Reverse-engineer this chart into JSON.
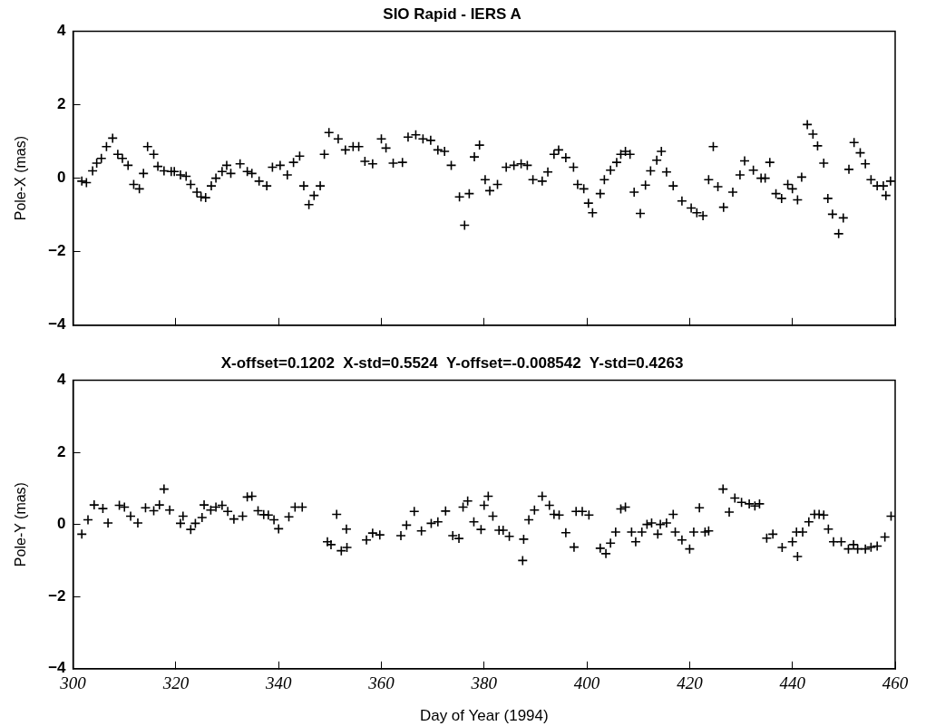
{
  "chart_data": [
    {
      "type": "scatter",
      "title": "SIO Rapid - IERS A",
      "ylabel": "Pole-X (mas)",
      "color": "#000000",
      "marker": "cross",
      "grid": false,
      "tick_labels": "y",
      "xlim": [
        300,
        460
      ],
      "xticks": [
        300,
        320,
        340,
        360,
        380,
        400,
        420,
        440,
        460
      ],
      "ylim": [
        -4,
        4
      ],
      "yticks": [
        -4,
        -2,
        0,
        2,
        4
      ],
      "x": [
        301.7,
        302.6,
        303.8,
        304.6,
        305.5,
        306.5,
        307.7,
        308.7,
        309.6,
        310.7,
        311.8,
        312.9,
        313.7,
        314.5,
        315.7,
        316.5,
        317.7,
        319.1,
        319.7,
        320.9,
        322.0,
        322.9,
        324.1,
        324.9,
        325.8,
        326.9,
        327.8,
        329.0,
        329.9,
        330.7,
        332.5,
        333.9,
        334.8,
        336.2,
        337.7,
        338.8,
        340.3,
        341.7,
        342.9,
        344.1,
        344.9,
        345.9,
        346.9,
        348.1,
        348.9,
        349.8,
        351.6,
        353.0,
        354.5,
        355.6,
        356.8,
        358.3,
        360.0,
        360.9,
        362.3,
        364.1,
        365.2,
        366.7,
        368.1,
        369.6,
        371.0,
        372.3,
        373.6,
        375.2,
        376.2,
        377.1,
        378.1,
        379.1,
        380.2,
        381.1,
        382.6,
        384.3,
        385.8,
        387.2,
        388.4,
        389.5,
        391.3,
        392.4,
        393.6,
        394.5,
        395.9,
        397.4,
        398.2,
        399.4,
        400.3,
        401.1,
        402.6,
        403.4,
        404.6,
        405.8,
        406.6,
        407.5,
        408.4,
        409.2,
        410.4,
        411.4,
        412.4,
        413.6,
        414.5,
        415.5,
        416.8,
        418.5,
        420.3,
        421.4,
        422.6,
        423.7,
        424.6,
        425.5,
        426.6,
        428.4,
        429.8,
        430.7,
        432.4,
        433.9,
        434.7,
        435.6,
        436.8,
        437.9,
        439.1,
        440.0,
        441.0,
        441.8,
        442.9,
        444.0,
        444.9,
        446.1,
        446.9,
        447.8,
        449.0,
        449.9,
        451.0,
        452.0,
        453.2,
        454.2,
        455.3,
        456.5,
        457.7,
        458.2,
        459.1
      ],
      "values": [
        -0.08,
        -0.12,
        0.2,
        0.41,
        0.54,
        0.86,
        1.09,
        0.65,
        0.54,
        0.35,
        -0.17,
        -0.29,
        0.13,
        0.86,
        0.65,
        0.32,
        0.2,
        0.18,
        0.18,
        0.09,
        0.05,
        -0.17,
        -0.38,
        -0.51,
        -0.53,
        -0.21,
        0.0,
        0.18,
        0.35,
        0.13,
        0.39,
        0.18,
        0.13,
        -0.08,
        -0.21,
        0.3,
        0.35,
        0.09,
        0.43,
        0.6,
        -0.21,
        -0.72,
        -0.47,
        -0.21,
        0.65,
        1.24,
        1.07,
        0.77,
        0.86,
        0.86,
        0.46,
        0.39,
        1.07,
        0.82,
        0.41,
        0.43,
        1.12,
        1.18,
        1.07,
        1.03,
        0.77,
        0.73,
        0.35,
        -0.51,
        -1.28,
        -0.42,
        0.58,
        0.9,
        -0.04,
        -0.34,
        -0.17,
        0.3,
        0.35,
        0.39,
        0.35,
        -0.04,
        -0.08,
        0.17,
        0.65,
        0.77,
        0.56,
        0.3,
        -0.17,
        -0.29,
        -0.68,
        -0.94,
        -0.42,
        -0.04,
        0.22,
        0.43,
        0.65,
        0.73,
        0.65,
        -0.38,
        -0.96,
        -0.19,
        0.2,
        0.49,
        0.73,
        0.17,
        -0.21,
        -0.62,
        -0.81,
        -0.94,
        -1.02,
        -0.04,
        0.86,
        -0.23,
        -0.79,
        -0.38,
        0.09,
        0.47,
        0.22,
        0.0,
        0.0,
        0.43,
        -0.42,
        -0.55,
        -0.17,
        -0.29,
        -0.59,
        0.03,
        1.46,
        1.2,
        0.88,
        0.41,
        -0.55,
        -0.98,
        -1.51,
        -1.08,
        0.24,
        0.97,
        0.69,
        0.39,
        -0.04,
        -0.21,
        -0.21,
        -0.47,
        -0.08
      ]
    },
    {
      "type": "scatter",
      "title": "X-offset=0.1202  X-std=0.5524  Y-offset=-0.008542  Y-std=0.4263",
      "ylabel": "Pole-Y (mas)",
      "xlabel": "Day of Year (1994)",
      "color": "#000000",
      "marker": "cross",
      "grid": false,
      "xlim": [
        300,
        460
      ],
      "xticks": [
        300,
        320,
        340,
        360,
        380,
        400,
        420,
        440,
        460
      ],
      "ylim": [
        -4,
        4
      ],
      "yticks": [
        -4,
        -2,
        0,
        2,
        4
      ],
      "x": [
        301.7,
        302.9,
        304.1,
        305.8,
        306.8,
        309.0,
        310.0,
        311.2,
        312.6,
        314.1,
        315.7,
        316.8,
        317.7,
        318.8,
        320.9,
        321.4,
        322.9,
        323.8,
        325.1,
        325.5,
        326.8,
        327.8,
        329.0,
        330.1,
        331.3,
        333.0,
        333.9,
        334.8,
        336.0,
        337.1,
        338.0,
        339.1,
        340.0,
        342.0,
        343.2,
        344.6,
        349.5,
        350.2,
        351.3,
        352.2,
        353.2,
        353.3,
        357.1,
        358.3,
        359.7,
        363.8,
        364.9,
        366.4,
        367.8,
        369.7,
        371.0,
        372.5,
        373.9,
        375.1,
        375.9,
        376.8,
        378.0,
        379.4,
        380.0,
        380.8,
        381.7,
        382.9,
        383.7,
        384.9,
        387.5,
        387.7,
        388.7,
        389.8,
        391.3,
        392.7,
        393.6,
        394.6,
        395.9,
        397.5,
        397.9,
        399.1,
        400.4,
        402.6,
        403.7,
        404.6,
        405.6,
        406.6,
        407.5,
        408.7,
        409.5,
        410.7,
        411.7,
        412.6,
        413.8,
        414.3,
        415.5,
        416.8,
        417.2,
        418.5,
        420.0,
        420.8,
        421.9,
        423.0,
        423.7,
        426.5,
        427.7,
        428.8,
        430.1,
        431.6,
        432.7,
        433.6,
        435.0,
        436.2,
        438.0,
        440.0,
        440.8,
        441.0,
        442.0,
        443.2,
        444.3,
        445.2,
        446.1,
        447.0,
        448.0,
        449.5,
        450.9,
        451.9,
        452.7,
        454.2,
        455.3,
        456.5,
        458.0,
        459.2
      ],
      "values": [
        -0.27,
        0.13,
        0.54,
        0.44,
        0.04,
        0.53,
        0.48,
        0.23,
        0.04,
        0.46,
        0.38,
        0.54,
        0.98,
        0.4,
        0.03,
        0.23,
        -0.14,
        0.03,
        0.19,
        0.54,
        0.4,
        0.48,
        0.53,
        0.36,
        0.15,
        0.23,
        0.76,
        0.78,
        0.38,
        0.27,
        0.26,
        0.13,
        -0.12,
        0.21,
        0.48,
        0.48,
        -0.48,
        -0.56,
        0.28,
        -0.73,
        -0.13,
        -0.64,
        -0.43,
        -0.24,
        -0.29,
        -0.31,
        -0.02,
        0.36,
        -0.18,
        0.03,
        0.07,
        0.37,
        -0.31,
        -0.39,
        0.48,
        0.65,
        0.07,
        -0.14,
        0.53,
        0.78,
        0.23,
        -0.16,
        -0.16,
        -0.33,
        -1.0,
        -0.41,
        0.13,
        0.4,
        0.78,
        0.53,
        0.28,
        0.26,
        -0.23,
        -0.63,
        0.36,
        0.36,
        0.26,
        -0.66,
        -0.81,
        -0.52,
        -0.21,
        0.43,
        0.48,
        -0.21,
        -0.48,
        -0.21,
        0.0,
        0.04,
        -0.27,
        0.0,
        0.04,
        0.28,
        -0.21,
        -0.43,
        -0.68,
        -0.21,
        0.46,
        -0.21,
        -0.18,
        0.98,
        0.34,
        0.73,
        0.61,
        0.57,
        0.51,
        0.57,
        -0.38,
        -0.27,
        -0.64,
        -0.48,
        -0.21,
        -0.89,
        -0.21,
        0.07,
        0.28,
        0.28,
        0.26,
        -0.13,
        -0.48,
        -0.48,
        -0.68,
        -0.56,
        -0.68,
        -0.68,
        -0.63,
        -0.6,
        -0.35,
        0.23
      ]
    }
  ]
}
